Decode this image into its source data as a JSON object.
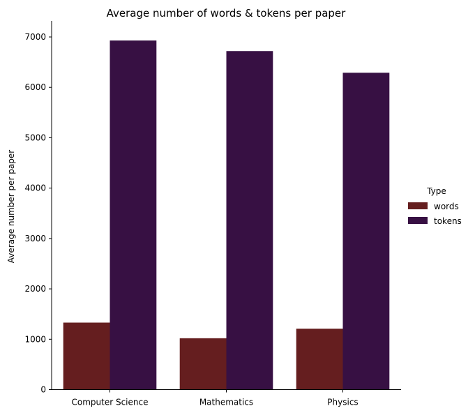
{
  "chart_data": {
    "type": "bar",
    "title": "Average number of words & tokens per paper",
    "xlabel": "",
    "ylabel": "Average number per paper",
    "categories": [
      "Computer Science",
      "Mathematics",
      "Physics"
    ],
    "series": [
      {
        "name": "words",
        "values": [
          1330,
          1020,
          1210
        ],
        "color": "#651e1f"
      },
      {
        "name": "tokens",
        "values": [
          6930,
          6720,
          6290
        ],
        "color": "#371043"
      }
    ],
    "ylim": [
      0,
      7300
    ],
    "yticks": [
      0,
      1000,
      2000,
      3000,
      4000,
      5000,
      6000,
      7000
    ],
    "grid": false,
    "legend": {
      "title": "Type",
      "placement": "right"
    }
  }
}
